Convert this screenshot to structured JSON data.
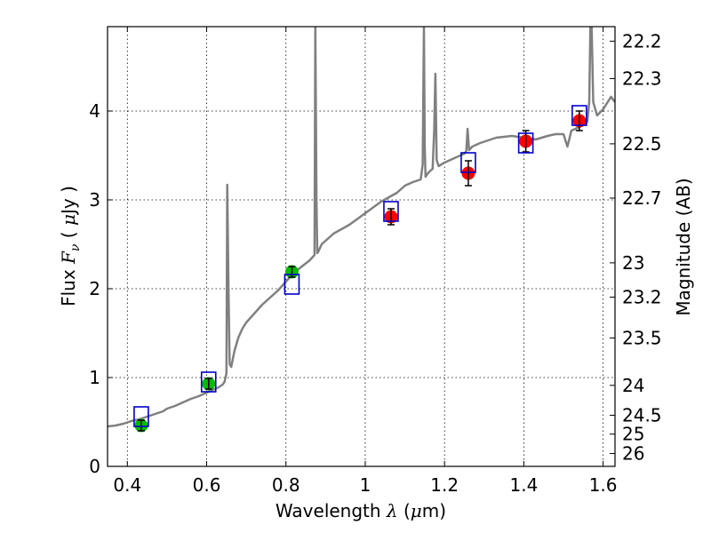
{
  "chart_data": {
    "type": "scatter",
    "title": "",
    "xlabel": "Wavelength  λ (μm)",
    "xlabel_parts": {
      "text": "Wavelength  ",
      "symbol": "λ",
      "unit_open": " (",
      "unit_mu": "μ",
      "unit_rest": "m)"
    },
    "ylabel": "Flux  F_ν  ( μJy )",
    "ylabel_parts": {
      "text": "Flux  ",
      "symbol": "F",
      "sub": "ν",
      "unit_open": "  ( ",
      "unit_mu": "μ",
      "unit_rest": "Jy )"
    },
    "y2label": "Magnitude (AB)",
    "xlim": [
      0.35,
      1.63
    ],
    "ylim": [
      0,
      4.95
    ],
    "x_ticks": [
      0.4,
      0.6,
      0.8,
      1.0,
      1.2,
      1.4,
      1.6
    ],
    "x_tick_labels": [
      "0.4",
      "0.6",
      "0.8",
      "1",
      "1.2",
      "1.4",
      "1.6"
    ],
    "y_ticks": [
      0,
      1,
      2,
      3,
      4
    ],
    "y_tick_labels": [
      "0",
      "1",
      "2",
      "3",
      "4"
    ],
    "y2_ticks": [
      22.2,
      22.3,
      22.5,
      22.7,
      23,
      23.2,
      23.5,
      24,
      24.5,
      25,
      26
    ],
    "y2_tick_labels": [
      "22.2",
      "22.3",
      "22.5",
      "22.7",
      "23",
      "23.2",
      "23.5",
      "24",
      "24.5",
      "25",
      "26"
    ],
    "grid": true,
    "colors": {
      "spectrum": "#808080",
      "model_box": "#0000cc",
      "optical_points": "#00bb00",
      "nir_points": "#ff0000",
      "errorbar": "#000000"
    },
    "series": [
      {
        "name": "model spectrum",
        "kind": "line",
        "x": [
          0.35,
          0.37,
          0.39,
          0.41,
          0.43,
          0.45,
          0.47,
          0.49,
          0.5,
          0.52,
          0.54,
          0.56,
          0.58,
          0.6,
          0.62,
          0.63,
          0.64,
          0.645,
          0.65,
          0.652,
          0.655,
          0.658,
          0.662,
          0.67,
          0.68,
          0.69,
          0.7,
          0.72,
          0.74,
          0.76,
          0.78,
          0.8,
          0.82,
          0.84,
          0.86,
          0.868,
          0.872,
          0.874,
          0.877,
          0.879,
          0.882,
          0.89,
          0.92,
          0.96,
          1.0,
          1.04,
          1.06,
          1.08,
          1.09,
          1.1,
          1.12,
          1.14,
          1.145,
          1.148,
          1.15,
          1.152,
          1.155,
          1.16,
          1.17,
          1.174,
          1.177,
          1.18,
          1.185,
          1.2,
          1.22,
          1.24,
          1.25,
          1.255,
          1.258,
          1.262,
          1.27,
          1.29,
          1.31,
          1.33,
          1.35,
          1.37,
          1.4,
          1.43,
          1.46,
          1.48,
          1.5,
          1.51,
          1.52,
          1.54,
          1.55,
          1.56,
          1.565,
          1.568,
          1.571,
          1.575,
          1.585,
          1.6,
          1.62,
          1.63
        ],
        "y": [
          0.45,
          0.46,
          0.48,
          0.51,
          0.53,
          0.56,
          0.59,
          0.62,
          0.65,
          0.68,
          0.72,
          0.76,
          0.79,
          0.83,
          0.87,
          0.89,
          0.92,
          0.95,
          1.05,
          3.17,
          2.0,
          1.15,
          1.12,
          1.3,
          1.45,
          1.55,
          1.62,
          1.72,
          1.82,
          1.9,
          1.98,
          2.08,
          2.18,
          2.25,
          2.32,
          2.36,
          2.38,
          4.95,
          3.0,
          2.4,
          2.42,
          2.5,
          2.62,
          2.72,
          2.85,
          2.98,
          3.03,
          3.08,
          3.12,
          3.16,
          3.2,
          3.23,
          3.4,
          4.95,
          3.6,
          3.26,
          3.28,
          3.31,
          3.35,
          3.8,
          4.42,
          3.45,
          3.38,
          3.42,
          3.46,
          3.5,
          3.52,
          3.55,
          3.8,
          3.56,
          3.6,
          3.64,
          3.67,
          3.7,
          3.71,
          3.72,
          3.7,
          3.68,
          3.72,
          3.74,
          3.74,
          3.6,
          3.78,
          3.82,
          3.84,
          3.88,
          4.1,
          4.95,
          4.95,
          4.1,
          3.95,
          4.02,
          4.16,
          4.1
        ]
      },
      {
        "name": "model photometry",
        "kind": "open-square",
        "x": [
          0.435,
          0.605,
          0.815,
          1.065,
          1.26,
          1.405,
          1.54
        ],
        "y": [
          0.56,
          0.95,
          2.05,
          2.87,
          3.42,
          3.64,
          3.95
        ]
      },
      {
        "name": "optical photometry",
        "kind": "filled-circle",
        "x": [
          0.435,
          0.605,
          0.815
        ],
        "y": [
          0.46,
          0.93,
          2.19
        ],
        "yerr": [
          0.06,
          0.06,
          0.06
        ]
      },
      {
        "name": "near-IR photometry",
        "kind": "filled-circle",
        "x": [
          1.065,
          1.26,
          1.405,
          1.54
        ],
        "y": [
          2.81,
          3.3,
          3.66,
          3.89
        ],
        "yerr": [
          0.09,
          0.14,
          0.12,
          0.11
        ]
      }
    ]
  }
}
